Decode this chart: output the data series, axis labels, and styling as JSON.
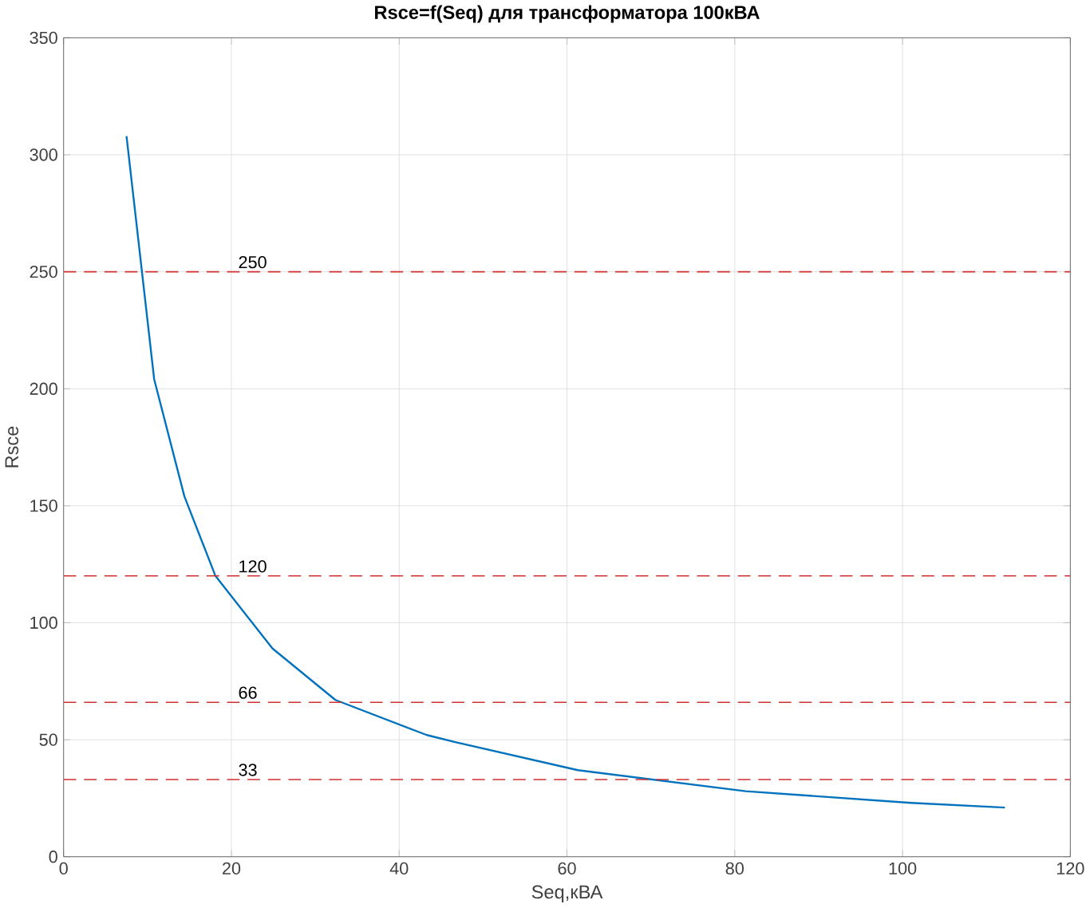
{
  "chart_data": {
    "type": "line",
    "title": "Rsce=f(Seq) для трансформатора 100кВА",
    "xlabel": "Seq,кВА",
    "ylabel": "Rsce",
    "x": [
      7.5,
      10.8,
      14.4,
      18.1,
      24.9,
      32.4,
      43.3,
      46.7,
      61.3,
      81.3,
      101,
      112.2
    ],
    "series": [
      {
        "color": "#0072bd",
        "values": [
          308,
          204,
          154,
          120,
          89,
          67,
          52,
          49,
          37,
          28,
          23,
          21
        ]
      }
    ],
    "ref_lines": [
      {
        "axis": "y",
        "value": 250,
        "label": "250",
        "color": "#d03030",
        "line_style": "dashed"
      },
      {
        "axis": "y",
        "value": 120,
        "label": "120",
        "color": "#d03030",
        "line_style": "dashed"
      },
      {
        "axis": "y",
        "value": 66,
        "label": "66",
        "color": "#d03030",
        "line_style": "dashed"
      },
      {
        "axis": "y",
        "value": 33,
        "label": "33",
        "color": "#d03030",
        "line_style": "dashed"
      }
    ],
    "xlim": [
      0,
      120
    ],
    "ylim": [
      0,
      350
    ],
    "xticks": [
      0,
      20,
      40,
      60,
      80,
      100,
      120
    ],
    "yticks": [
      0,
      50,
      100,
      150,
      200,
      250,
      300,
      350
    ],
    "grid": true,
    "line_style": "solid"
  }
}
